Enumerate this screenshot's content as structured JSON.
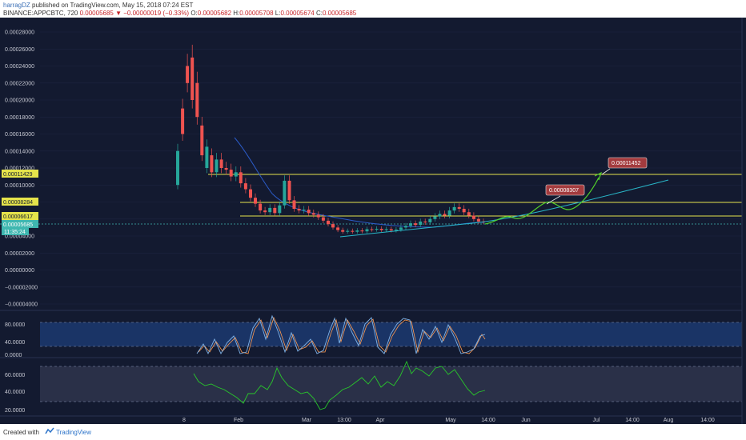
{
  "header": {
    "user": "harragDZ",
    "published": " published on TradingView.com, May 15, 2018 07:24 EST",
    "symbol": "BINANCE:APPCBTC, 720",
    "price": "0.00005685",
    "change": "▼ −0.00000019 (−0.33%)",
    "ohlc_o_label": "O:",
    "ohlc_o": "0.00005682",
    "ohlc_h_label": "H:",
    "ohlc_h": "0.00005708",
    "ohlc_l_label": "L:",
    "ohlc_l": "0.00005674",
    "ohlc_c_label": "C:",
    "ohlc_c": "0.00005685"
  },
  "colors": {
    "background": "#131a30",
    "up_candle": "#26a69a",
    "down_candle": "#ef5350",
    "level_line": "#e5e34b",
    "projection": "#52d12b",
    "trend_curve": "#29b6c7",
    "ma_line": "#2b5bc7",
    "stoch_k": "#7fb3e8",
    "stoch_d": "#ff9a50",
    "rsi_line": "#29c72b"
  },
  "price_axis": {
    "ticks": [
      "0.00028000",
      "0.00026000",
      "0.00024000",
      "0.00022000",
      "0.00020000",
      "0.00018000",
      "0.00016000",
      "0.00014000",
      "0.00012000",
      "0.00010000",
      "0.00008000",
      "0.00006000",
      "0.00004000",
      "0.00002000",
      "0.00000000",
      "−0.00002000",
      "−0.00004000"
    ],
    "tag_114": "0.00011429",
    "tag_82": "0.00008284",
    "tag_66": "0.00006617",
    "tag_price": "0.00005685",
    "tag_time": "11:35:24"
  },
  "annotations": {
    "target_1": "0.00008307",
    "target_2": "0.00011452"
  },
  "stoch_axis": {
    "ticks": [
      "80.0000",
      "40.0000",
      "0.0000"
    ]
  },
  "rsi_axis": {
    "ticks": [
      "60.0000",
      "40.0000",
      "20.0000"
    ]
  },
  "time_axis": {
    "labels": [
      "8",
      "Feb",
      "Mar",
      "13:00",
      "Apr",
      "May",
      "14:00",
      "Jun",
      "Jul",
      "14:00",
      "Aug",
      "14:00"
    ]
  },
  "chart_data": {
    "type": "candlestick",
    "symbol": "BINANCE:APPCBTC",
    "interval": "720",
    "ylim": [
      -4e-05,
      0.00029
    ],
    "levels": [
      0.00011429,
      8.284e-05,
      6.617e-05,
      5.685e-05
    ],
    "targets": [
      8.307e-05,
      0.00011452
    ],
    "close_path": [
      [
        0.0001,
        0.00014
      ],
      [
        0.00019,
        0.00016
      ],
      [
        0.00024,
        0.00022
      ],
      [
        0.00025,
        0.0002
      ],
      [
        0.00022,
        0.00018
      ],
      [
        0.00017,
        0.000135
      ],
      [
        0.00012,
        0.000145
      ],
      [
        0.000135,
        0.000115
      ],
      [
        0.000115,
        0.00013
      ],
      [
        0.00013,
        0.00012
      ],
      [
        0.00012,
        0.000118
      ],
      [
        0.000118,
        0.00011
      ],
      [
        0.00011,
        0.000115
      ],
      [
        0.000115,
        0.000102
      ],
      [
        0.000102,
        9.5e-05
      ],
      [
        9.5e-05,
        8.5e-05
      ],
      [
        8.5e-05,
        7.8e-05
      ],
      [
        7.8e-05,
        7e-05
      ],
      [
        7e-05,
        6.8e-05
      ],
      [
        6.8e-05,
        7.3e-05
      ],
      [
        7.3e-05,
        6.7e-05
      ],
      [
        6.7e-05,
        7.6e-05
      ],
      [
        7.6e-05,
        0.000105
      ],
      [
        0.000105,
        8.2e-05
      ],
      [
        8.2e-05,
        7.2e-05
      ],
      [
        7.2e-05,
        7e-05
      ],
      [
        7e-05,
        7.1e-05
      ],
      [
        7.1e-05,
        6.7e-05
      ],
      [
        6.7e-05,
        6.5e-05
      ],
      [
        6.5e-05,
        6.2e-05
      ],
      [
        6.2e-05,
        5.8e-05
      ],
      [
        5.8e-05,
        5.4e-05
      ],
      [
        5.4e-05,
        5e-05
      ],
      [
        5e-05,
        4.7e-05
      ],
      [
        4.7e-05,
        4.5e-05
      ],
      [
        4.5e-05,
        4.6e-05
      ],
      [
        4.6e-05,
        4.5e-05
      ],
      [
        4.5e-05,
        4.65e-05
      ],
      [
        4.65e-05,
        4.55e-05
      ],
      [
        4.55e-05,
        4.8e-05
      ],
      [
        4.8e-05,
        4.75e-05
      ],
      [
        4.75e-05,
        4.85e-05
      ],
      [
        4.85e-05,
        4.7e-05
      ],
      [
        4.7e-05,
        4.8e-05
      ],
      [
        4.8e-05,
        4.65e-05
      ],
      [
        4.65e-05,
        4.75e-05
      ],
      [
        4.75e-05,
        5e-05
      ],
      [
        5e-05,
        5.2e-05
      ],
      [
        5.2e-05,
        5.5e-05
      ],
      [
        5.5e-05,
        5.3e-05
      ],
      [
        5.3e-05,
        5.7e-05
      ],
      [
        5.7e-05,
        5.6e-05
      ],
      [
        5.6e-05,
        6e-05
      ],
      [
        6e-05,
        6.3e-05
      ],
      [
        6.3e-05,
        6.6e-05
      ],
      [
        6.6e-05,
        6.4e-05
      ],
      [
        6.4e-05,
        7e-05
      ],
      [
        7e-05,
        7.4e-05
      ],
      [
        7.4e-05,
        7.2e-05
      ],
      [
        7.2e-05,
        6.8e-05
      ],
      [
        6.8e-05,
        6.4e-05
      ],
      [
        6.4e-05,
        6e-05
      ],
      [
        6e-05,
        5.7e-05
      ],
      [
        5.7e-05,
        5.685e-05
      ]
    ]
  }
}
